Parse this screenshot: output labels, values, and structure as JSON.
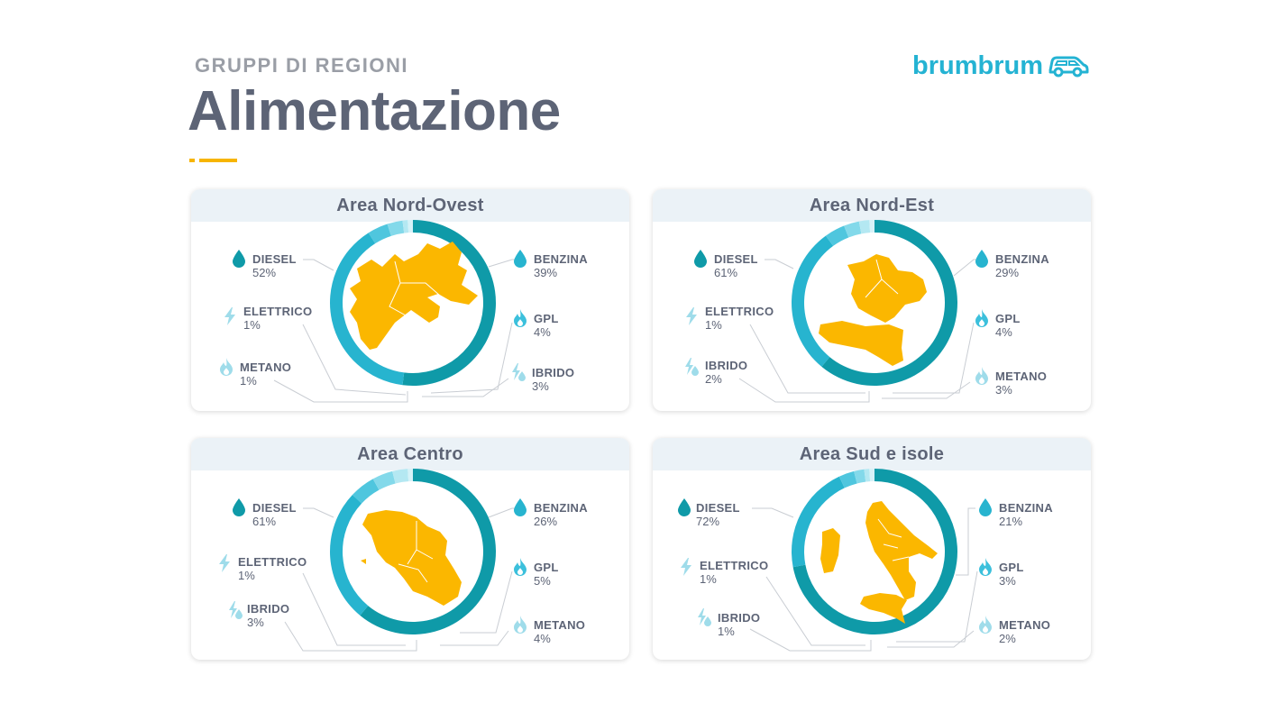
{
  "header": {
    "kicker": "GRUPPI DI REGIONI",
    "title": "Alimentazione",
    "logo_text": "brumbrum"
  },
  "colors": {
    "dark_teal": "#0f9aa8",
    "teal": "#27b4cf",
    "mid_blue": "#5bcbe2",
    "light_blue": "#a3e3ef",
    "pale_blue": "#cfeff6",
    "map": "#fbb700",
    "accent": "#f7b500"
  },
  "chart_data": [
    {
      "type": "pie",
      "title": "Area Nord-Ovest",
      "segments": [
        {
          "label": "DIESEL",
          "value": 52,
          "pct": "52%",
          "color": "#0f9aa8",
          "icon": "drop-icon"
        },
        {
          "label": "BENZINA",
          "value": 39,
          "pct": "39%",
          "color": "#27b4cf",
          "icon": "drop-icon"
        },
        {
          "label": "GPL",
          "value": 4,
          "pct": "4%",
          "color": "#4fc6de",
          "icon": "flame-icon"
        },
        {
          "label": "IBRIDO",
          "value": 3,
          "pct": "3%",
          "color": "#83d9ea",
          "icon": "hybrid-icon"
        },
        {
          "label": "METANO",
          "value": 1,
          "pct": "1%",
          "color": "#b4e8f2",
          "icon": "flame-icon"
        },
        {
          "label": "ELETTRICO",
          "value": 1,
          "pct": "1%",
          "color": "#d6f2f8",
          "icon": "bolt-icon"
        }
      ]
    },
    {
      "type": "pie",
      "title": "Area Nord-Est",
      "segments": [
        {
          "label": "DIESEL",
          "value": 61,
          "pct": "61%",
          "color": "#0f9aa8",
          "icon": "drop-icon"
        },
        {
          "label": "BENZINA",
          "value": 29,
          "pct": "29%",
          "color": "#27b4cf",
          "icon": "drop-icon"
        },
        {
          "label": "GPL",
          "value": 4,
          "pct": "4%",
          "color": "#4fc6de",
          "icon": "flame-icon"
        },
        {
          "label": "METANO",
          "value": 3,
          "pct": "3%",
          "color": "#83d9ea",
          "icon": "flame-icon"
        },
        {
          "label": "IBRIDO",
          "value": 2,
          "pct": "2%",
          "color": "#b4e8f2",
          "icon": "hybrid-icon"
        },
        {
          "label": "ELETTRICO",
          "value": 1,
          "pct": "1%",
          "color": "#d6f2f8",
          "icon": "bolt-icon"
        }
      ]
    },
    {
      "type": "pie",
      "title": "Area Centro",
      "segments": [
        {
          "label": "DIESEL",
          "value": 61,
          "pct": "61%",
          "color": "#0f9aa8",
          "icon": "drop-icon"
        },
        {
          "label": "BENZINA",
          "value": 26,
          "pct": "26%",
          "color": "#27b4cf",
          "icon": "drop-icon"
        },
        {
          "label": "GPL",
          "value": 5,
          "pct": "5%",
          "color": "#4fc6de",
          "icon": "flame-icon"
        },
        {
          "label": "METANO",
          "value": 4,
          "pct": "4%",
          "color": "#83d9ea",
          "icon": "flame-icon"
        },
        {
          "label": "IBRIDO",
          "value": 3,
          "pct": "3%",
          "color": "#b4e8f2",
          "icon": "hybrid-icon"
        },
        {
          "label": "ELETTRICO",
          "value": 1,
          "pct": "1%",
          "color": "#d6f2f8",
          "icon": "bolt-icon"
        }
      ]
    },
    {
      "type": "pie",
      "title": "Area Sud e isole",
      "segments": [
        {
          "label": "DIESEL",
          "value": 72,
          "pct": "72%",
          "color": "#0f9aa8",
          "icon": "drop-icon"
        },
        {
          "label": "BENZINA",
          "value": 21,
          "pct": "21%",
          "color": "#27b4cf",
          "icon": "drop-icon"
        },
        {
          "label": "GPL",
          "value": 3,
          "pct": "3%",
          "color": "#4fc6de",
          "icon": "flame-icon"
        },
        {
          "label": "METANO",
          "value": 2,
          "pct": "2%",
          "color": "#83d9ea",
          "icon": "flame-icon"
        },
        {
          "label": "IBRIDO",
          "value": 1,
          "pct": "1%",
          "color": "#b4e8f2",
          "icon": "hybrid-icon"
        },
        {
          "label": "ELETTRICO",
          "value": 1,
          "pct": "1%",
          "color": "#d6f2f8",
          "icon": "bolt-icon"
        }
      ]
    }
  ]
}
